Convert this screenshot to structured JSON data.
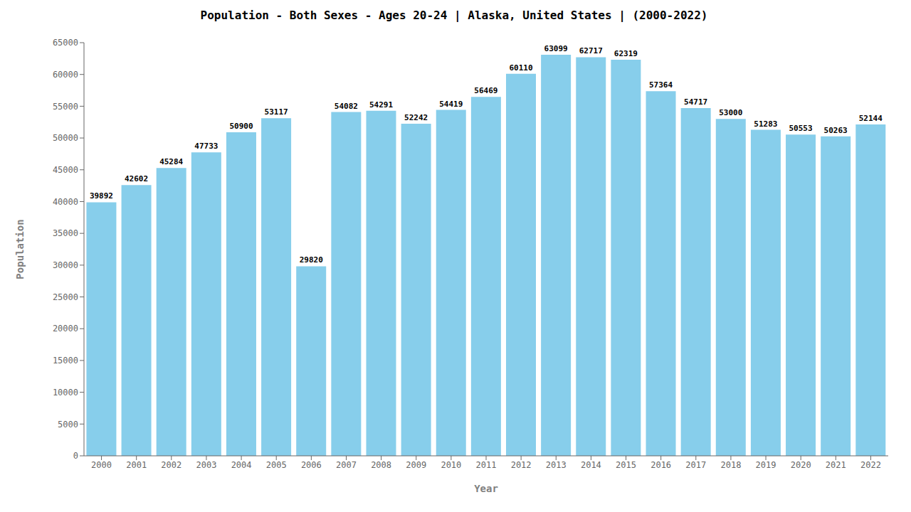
{
  "chart_data": {
    "type": "bar",
    "title": "Population - Both Sexes - Ages 20-24 | Alaska, United States |  (2000-2022)",
    "xlabel": "Year",
    "ylabel": "Population",
    "categories": [
      "2000",
      "2001",
      "2002",
      "2003",
      "2004",
      "2005",
      "2006",
      "2007",
      "2008",
      "2009",
      "2010",
      "2011",
      "2012",
      "2013",
      "2014",
      "2015",
      "2016",
      "2017",
      "2018",
      "2019",
      "2020",
      "2021",
      "2022"
    ],
    "values": [
      39892,
      42602,
      45284,
      47733,
      50900,
      53117,
      29820,
      54082,
      54291,
      52242,
      54419,
      56469,
      60110,
      63099,
      62717,
      62319,
      57364,
      54717,
      53000,
      51283,
      50553,
      50263,
      52144
    ],
    "color": "#87ceeb",
    "ylim": [
      0,
      65000
    ],
    "yticks": [
      0,
      5000,
      10000,
      15000,
      20000,
      25000,
      30000,
      35000,
      40000,
      45000,
      50000,
      55000,
      60000,
      65000
    ],
    "grid": false,
    "data_labels": true
  }
}
